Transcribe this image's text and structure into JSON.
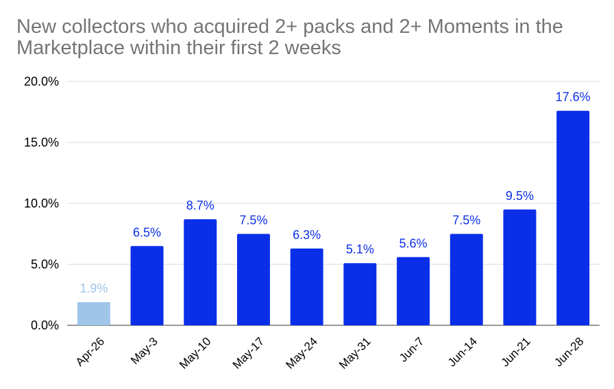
{
  "chart_data": {
    "type": "bar",
    "title": "New collectors who acquired 2+ packs and 2+ Moments in the Marketplace within their first 2 weeks",
    "xlabel": "",
    "ylabel": "",
    "categories": [
      "Apr-26",
      "May-3",
      "May-10",
      "May-17",
      "May-24",
      "May-31",
      "Jun-7",
      "Jun-14",
      "Jun-21",
      "Jun-28"
    ],
    "values": [
      1.9,
      6.5,
      8.7,
      7.5,
      6.3,
      5.1,
      5.6,
      7.5,
      9.5,
      17.6
    ],
    "data_labels": [
      "1.9%",
      "6.5%",
      "8.7%",
      "7.5%",
      "6.3%",
      "5.1%",
      "5.6%",
      "7.5%",
      "9.5%",
      "17.6%"
    ],
    "ylim": [
      0,
      20
    ],
    "yticks": [
      0,
      5,
      10,
      15,
      20
    ],
    "ytick_labels": [
      "0.0%",
      "5.0%",
      "10.0%",
      "15.0%",
      "20.0%"
    ],
    "grid": true,
    "legend": "none",
    "bar_colors": [
      "#9fc5e8",
      "#0b2fe8",
      "#0b2fe8",
      "#0b2fe8",
      "#0b2fe8",
      "#0b2fe8",
      "#0b2fe8",
      "#0b2fe8",
      "#0b2fe8",
      "#0b2fe8"
    ],
    "label_colors": [
      "#9fc5e8",
      "#0b2fe8",
      "#0b2fe8",
      "#0b2fe8",
      "#0b2fe8",
      "#0b2fe8",
      "#0b2fe8",
      "#0b2fe8",
      "#0b2fe8",
      "#0b2fe8"
    ],
    "title_color": "#757575"
  }
}
